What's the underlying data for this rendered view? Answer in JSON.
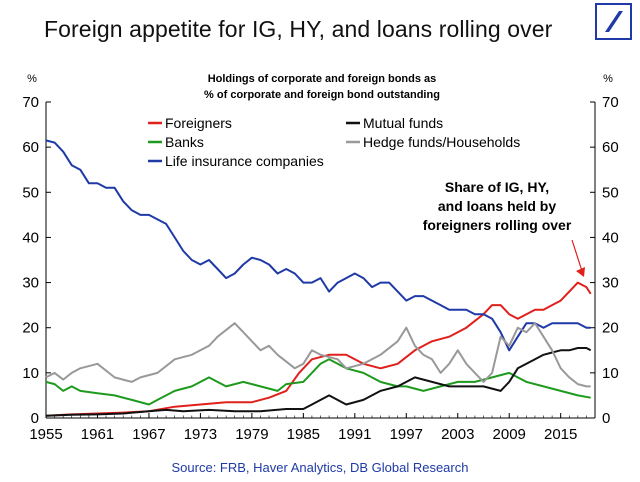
{
  "headline": "Foreign appetite for IG, HY, and loans rolling over",
  "logo": {
    "name": "deutsche-bank-slash-logo",
    "color": "#1f3aa6"
  },
  "source": "Source: FRB, Haver Analytics, DB Global  Research",
  "chart_data": {
    "type": "line",
    "title": "Holdings of corporate and foreign bonds as",
    "subtitle": "% of corporate and foreign bond outstanding",
    "ylabel_left": "%",
    "ylabel_right": "%",
    "xlim": [
      1955,
      2019
    ],
    "ylim": [
      0,
      70
    ],
    "x_ticks": [
      "1955",
      "1961",
      "1967",
      "1973",
      "1979",
      "1985",
      "1991",
      "1997",
      "2003",
      "2009",
      "2015"
    ],
    "y_ticks": [
      "0",
      "10",
      "20",
      "30",
      "40",
      "50",
      "60",
      "70"
    ],
    "grid": false,
    "legend": [
      {
        "label": "Foreigners",
        "color": "#e0201b"
      },
      {
        "label": "Banks",
        "color": "#1e9a1e"
      },
      {
        "label": "Life insurance companies",
        "color": "#1f3aa6"
      },
      {
        "label": "Mutual funds",
        "color": "#111111"
      },
      {
        "label": "Hedge funds/Households",
        "color": "#999999"
      }
    ],
    "annotation": [
      "Share of IG, HY,",
      "and loans held by",
      "foreigners rolling over"
    ],
    "series": [
      {
        "name": "Foreigners",
        "color": "#e0201b",
        "points": [
          [
            1955,
            0.5
          ],
          [
            1958,
            0.8
          ],
          [
            1961,
            1.0
          ],
          [
            1964,
            1.2
          ],
          [
            1967,
            1.5
          ],
          [
            1970,
            2.5
          ],
          [
            1973,
            3.0
          ],
          [
            1976,
            3.5
          ],
          [
            1979,
            3.5
          ],
          [
            1981,
            4.5
          ],
          [
            1983,
            6
          ],
          [
            1984.5,
            10
          ],
          [
            1986,
            13
          ],
          [
            1988,
            14
          ],
          [
            1990,
            14
          ],
          [
            1992,
            12
          ],
          [
            1994,
            11
          ],
          [
            1996,
            12
          ],
          [
            1998,
            15
          ],
          [
            2000,
            17
          ],
          [
            2002,
            18
          ],
          [
            2004,
            20
          ],
          [
            2006,
            23
          ],
          [
            2007,
            25
          ],
          [
            2008,
            25
          ],
          [
            2009,
            23
          ],
          [
            2010,
            22
          ],
          [
            2011,
            23
          ],
          [
            2012,
            24
          ],
          [
            2013,
            24
          ],
          [
            2014,
            25
          ],
          [
            2015,
            26
          ],
          [
            2016,
            28
          ],
          [
            2017,
            30
          ],
          [
            2018,
            29
          ],
          [
            2018.5,
            27.5
          ]
        ]
      },
      {
        "name": "Banks",
        "color": "#1e9a1e",
        "points": [
          [
            1955,
            8
          ],
          [
            1956,
            7.5
          ],
          [
            1957,
            6
          ],
          [
            1958,
            7
          ],
          [
            1959,
            6
          ],
          [
            1961,
            5.5
          ],
          [
            1963,
            5
          ],
          [
            1965,
            4
          ],
          [
            1967,
            3
          ],
          [
            1968,
            4
          ],
          [
            1970,
            6
          ],
          [
            1972,
            7
          ],
          [
            1974,
            9
          ],
          [
            1976,
            7
          ],
          [
            1978,
            8
          ],
          [
            1980,
            7
          ],
          [
            1982,
            6
          ],
          [
            1983,
            7.5
          ],
          [
            1985,
            8
          ],
          [
            1987,
            12
          ],
          [
            1988,
            13
          ],
          [
            1990,
            11
          ],
          [
            1992,
            10
          ],
          [
            1994,
            8
          ],
          [
            1996,
            7
          ],
          [
            1997,
            7
          ],
          [
            1999,
            6
          ],
          [
            2001,
            7
          ],
          [
            2003,
            8
          ],
          [
            2005,
            8
          ],
          [
            2007,
            9
          ],
          [
            2009,
            10
          ],
          [
            2011,
            8
          ],
          [
            2013,
            7
          ],
          [
            2015,
            6
          ],
          [
            2017,
            5
          ],
          [
            2018.5,
            4.5
          ]
        ]
      },
      {
        "name": "Life insurance companies",
        "color": "#1f3aa6",
        "points": [
          [
            1955,
            61.5
          ],
          [
            1956,
            61
          ],
          [
            1957,
            59
          ],
          [
            1958,
            56
          ],
          [
            1959,
            55
          ],
          [
            1960,
            52
          ],
          [
            1961,
            52
          ],
          [
            1962,
            51
          ],
          [
            1963,
            51
          ],
          [
            1964,
            48
          ],
          [
            1965,
            46
          ],
          [
            1966,
            45
          ],
          [
            1967,
            45
          ],
          [
            1968,
            44
          ],
          [
            1969,
            43
          ],
          [
            1970,
            40
          ],
          [
            1971,
            37
          ],
          [
            1972,
            35
          ],
          [
            1973,
            34
          ],
          [
            1974,
            35
          ],
          [
            1975,
            33
          ],
          [
            1976,
            31
          ],
          [
            1977,
            32
          ],
          [
            1978,
            34
          ],
          [
            1979,
            35.5
          ],
          [
            1980,
            35
          ],
          [
            1981,
            34
          ],
          [
            1982,
            32
          ],
          [
            1983,
            33
          ],
          [
            1984,
            32
          ],
          [
            1985,
            30
          ],
          [
            1986,
            30
          ],
          [
            1987,
            31
          ],
          [
            1988,
            28
          ],
          [
            1989,
            30
          ],
          [
            1990,
            31
          ],
          [
            1991,
            32
          ],
          [
            1992,
            31
          ],
          [
            1993,
            29
          ],
          [
            1994,
            30
          ],
          [
            1995,
            30
          ],
          [
            1996,
            28
          ],
          [
            1997,
            26
          ],
          [
            1998,
            27
          ],
          [
            1999,
            27
          ],
          [
            2000,
            26
          ],
          [
            2001,
            25
          ],
          [
            2002,
            24
          ],
          [
            2003,
            24
          ],
          [
            2004,
            24
          ],
          [
            2005,
            23
          ],
          [
            2006,
            23
          ],
          [
            2007,
            22
          ],
          [
            2008,
            19
          ],
          [
            2009,
            15
          ],
          [
            2010,
            18
          ],
          [
            2011,
            21
          ],
          [
            2012,
            21
          ],
          [
            2013,
            20
          ],
          [
            2014,
            21
          ],
          [
            2015,
            21
          ],
          [
            2016,
            21
          ],
          [
            2017,
            21
          ],
          [
            2018,
            20
          ],
          [
            2018.5,
            20
          ]
        ]
      },
      {
        "name": "Mutual funds",
        "color": "#111111",
        "points": [
          [
            1955,
            0.5
          ],
          [
            1958,
            0.7
          ],
          [
            1961,
            0.8
          ],
          [
            1964,
            1.0
          ],
          [
            1967,
            1.5
          ],
          [
            1969,
            1.8
          ],
          [
            1971,
            1.5
          ],
          [
            1974,
            1.8
          ],
          [
            1977,
            1.5
          ],
          [
            1980,
            1.5
          ],
          [
            1983,
            2
          ],
          [
            1985,
            2
          ],
          [
            1986,
            3
          ],
          [
            1988,
            5
          ],
          [
            1990,
            3
          ],
          [
            1992,
            4
          ],
          [
            1994,
            6
          ],
          [
            1996,
            7
          ],
          [
            1998,
            9
          ],
          [
            2000,
            8
          ],
          [
            2002,
            7
          ],
          [
            2004,
            7
          ],
          [
            2006,
            7
          ],
          [
            2008,
            6
          ],
          [
            2009,
            8
          ],
          [
            2010,
            11
          ],
          [
            2011,
            12
          ],
          [
            2012,
            13
          ],
          [
            2013,
            14
          ],
          [
            2014,
            14.5
          ],
          [
            2015,
            15
          ],
          [
            2016,
            15
          ],
          [
            2017,
            15.5
          ],
          [
            2018,
            15.5
          ],
          [
            2018.5,
            15
          ]
        ]
      },
      {
        "name": "Hedge funds/Households",
        "color": "#999999",
        "points": [
          [
            1955,
            9
          ],
          [
            1956,
            10
          ],
          [
            1957,
            8.5
          ],
          [
            1958,
            10
          ],
          [
            1959,
            11
          ],
          [
            1961,
            12
          ],
          [
            1963,
            9
          ],
          [
            1965,
            8
          ],
          [
            1966,
            9
          ],
          [
            1968,
            10
          ],
          [
            1970,
            13
          ],
          [
            1972,
            14
          ],
          [
            1974,
            16
          ],
          [
            1975,
            18
          ],
          [
            1977,
            21
          ],
          [
            1978,
            19
          ],
          [
            1979,
            17
          ],
          [
            1980,
            15
          ],
          [
            1981,
            16
          ],
          [
            1982,
            14
          ],
          [
            1984,
            11
          ],
          [
            1985,
            12
          ],
          [
            1986,
            15
          ],
          [
            1987,
            14
          ],
          [
            1989,
            13
          ],
          [
            1990,
            11
          ],
          [
            1992,
            12
          ],
          [
            1994,
            14
          ],
          [
            1996,
            17
          ],
          [
            1997,
            20
          ],
          [
            1998,
            16
          ],
          [
            1999,
            14
          ],
          [
            2000,
            13
          ],
          [
            2001,
            10
          ],
          [
            2002,
            12
          ],
          [
            2003,
            15
          ],
          [
            2004,
            12
          ],
          [
            2005,
            10
          ],
          [
            2006,
            8
          ],
          [
            2007,
            10
          ],
          [
            2008,
            18
          ],
          [
            2009,
            16
          ],
          [
            2010,
            20
          ],
          [
            2011,
            19
          ],
          [
            2012,
            21
          ],
          [
            2013,
            18
          ],
          [
            2014,
            15
          ],
          [
            2015,
            11
          ],
          [
            2016,
            9
          ],
          [
            2017,
            7.5
          ],
          [
            2018,
            7
          ],
          [
            2018.5,
            7
          ]
        ]
      }
    ]
  }
}
